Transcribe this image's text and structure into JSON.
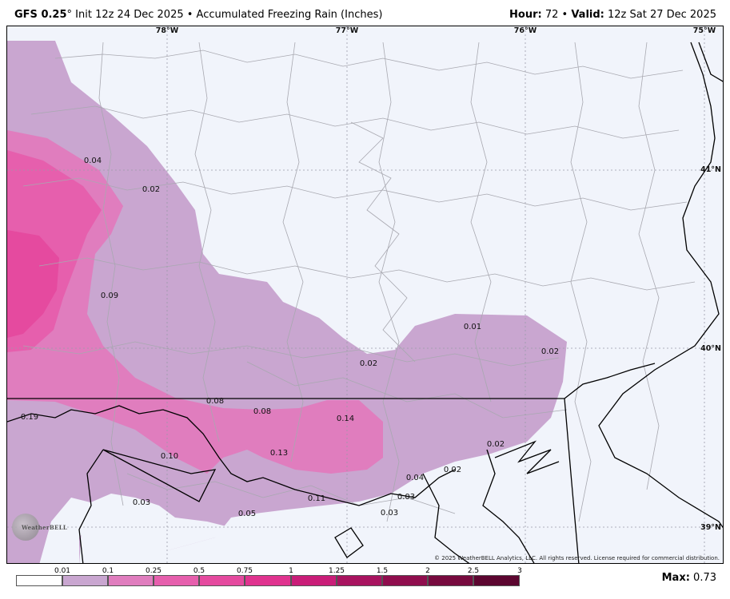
{
  "header": {
    "model": "GFS 0.25",
    "degree": "°",
    "init": " Init 12z 24 Dec 2025",
    "bullet": " • ",
    "product": "Accumulated Freezing Rain (Inches)",
    "hour_label": "Hour:",
    "hour_value": " 72",
    "valid_label": "Valid:",
    "valid_value": " 12z Sat 27 Dec 2025"
  },
  "map": {
    "lon_labels": [
      "78°W",
      "77°W",
      "76°W",
      "75°W"
    ],
    "lat_labels": [
      "41°N",
      "40°N",
      "39°N"
    ],
    "contour_labels": [
      "0.04",
      "0.02",
      "0.09",
      "0.01",
      "0.02",
      "0.02",
      "0.08",
      "0.19",
      "0.08",
      "0.14",
      "0.02",
      "0.10",
      "0.13",
      "0.02",
      "0.04",
      "0.03",
      "0.03",
      "0.11",
      "0.05",
      "0.03"
    ],
    "copyright": "© 2025 WeatherBELL Analytics, LLC. All rights reserved. License required for commercial distribution.",
    "logo_text": "WeatherBELL"
  },
  "colorbar": {
    "ticks": [
      "0.01",
      "0.1",
      "0.25",
      "0.5",
      "0.75",
      "1",
      "1.25",
      "1.5",
      "2",
      "2.5",
      "3"
    ],
    "colors": [
      "#ffffff",
      "#c9a6d0",
      "#e07dbe",
      "#e65fad",
      "#e54a9f",
      "#e0338f",
      "#c91d78",
      "#a8135f",
      "#8f0d4d",
      "#770a3e",
      "#5c0630"
    ]
  },
  "footer": {
    "max_label": "Max:",
    "max_value": " 0.73"
  }
}
